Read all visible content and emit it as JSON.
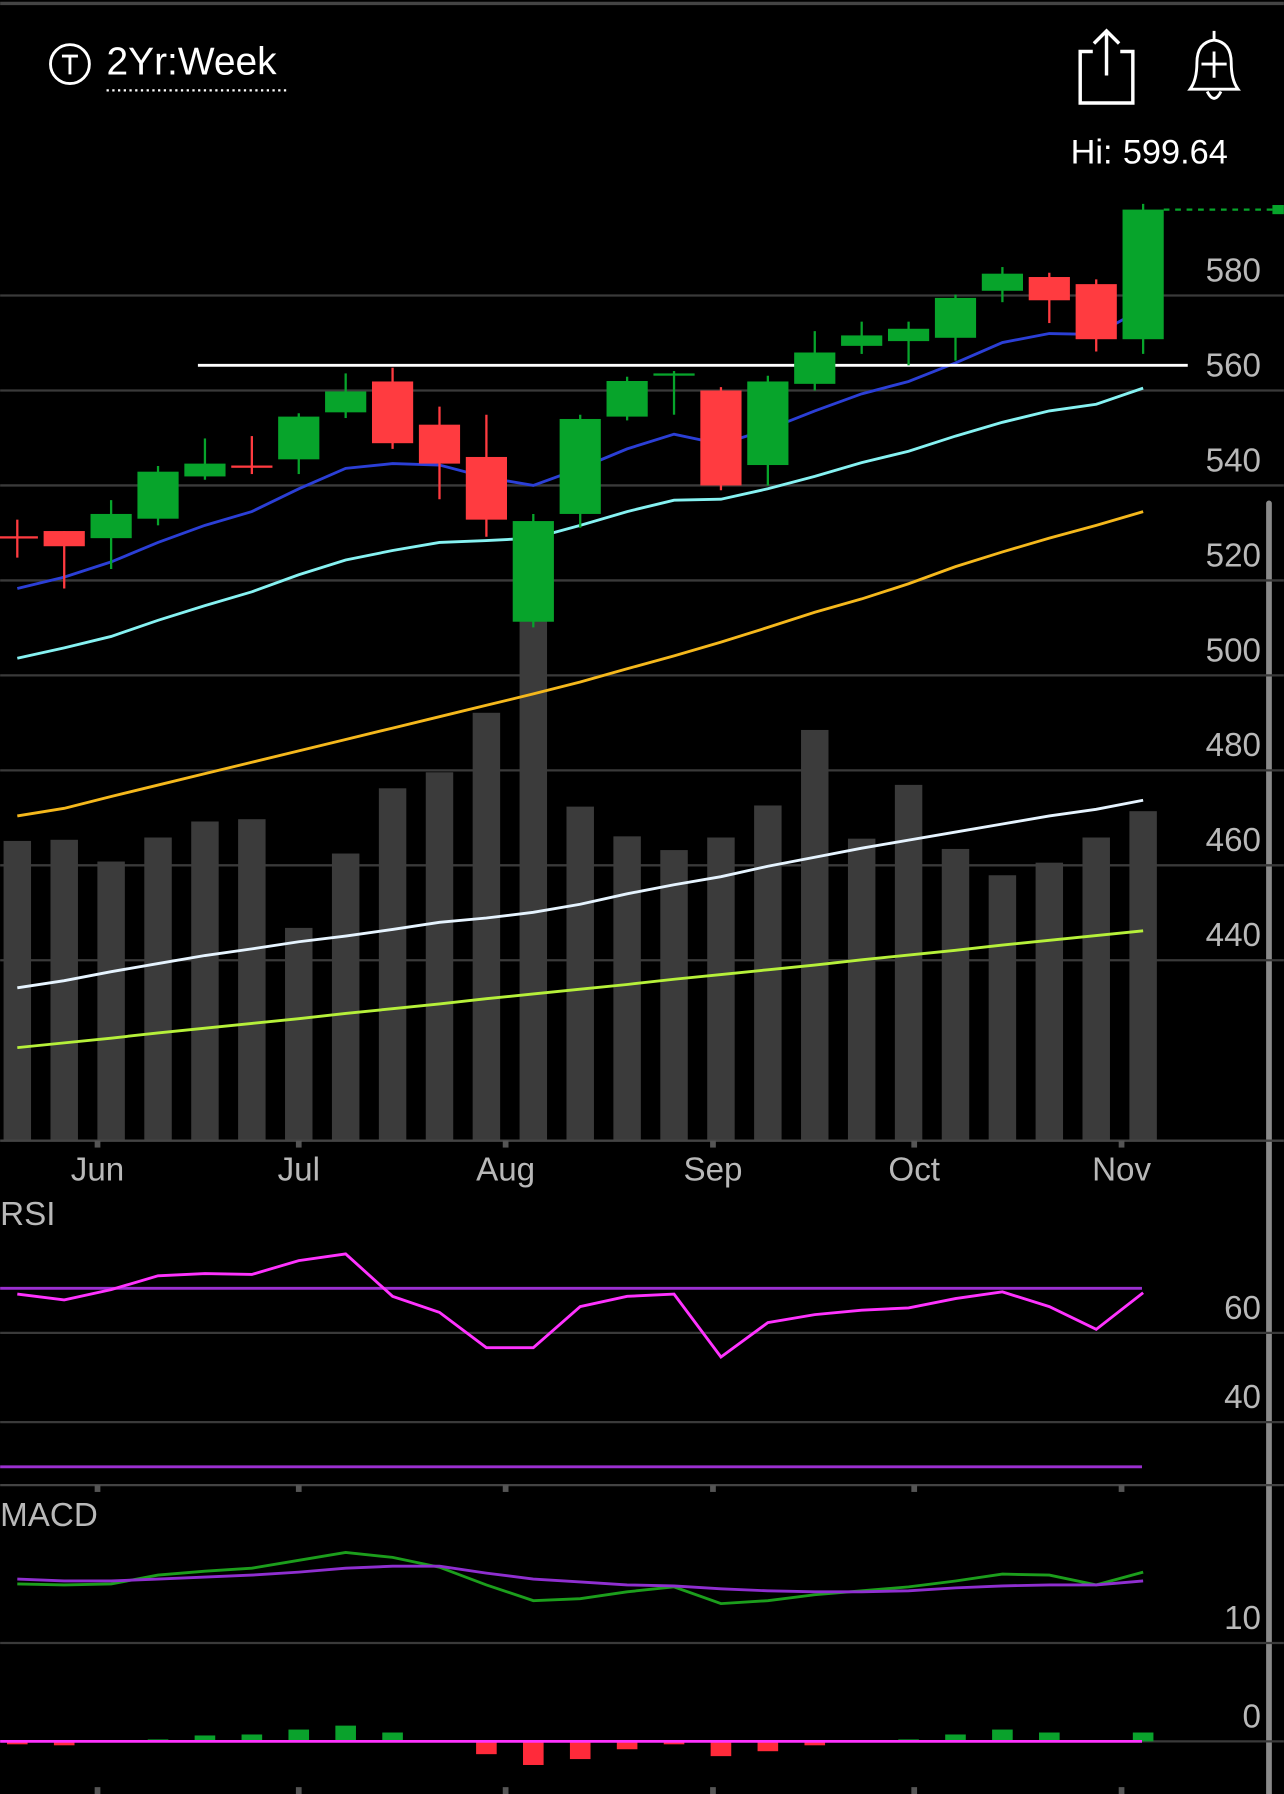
{
  "header": {
    "range": "2Yr:Week",
    "high_label": "Hi:",
    "high": 599.64
  },
  "chart_data": [
    {
      "type": "candlestick",
      "categories": [
        null,
        null,
        null,
        null,
        null,
        null,
        null,
        null,
        null,
        null,
        null,
        null,
        null,
        null,
        null,
        null,
        null,
        null,
        null,
        null,
        null,
        null,
        null,
        null,
        null
      ],
      "open": [
        529.3,
        530.4,
        528.9,
        533.0,
        541.9,
        544.2,
        545.5,
        555.4,
        561.9,
        552.8,
        546.0,
        511.3,
        534.0,
        554.5,
        563.4,
        560.0,
        544.3,
        561.4,
        569.4,
        570.4,
        571.1,
        581.0,
        583.9,
        582.4,
        570.8
      ],
      "high": [
        532.8,
        530.4,
        536.9,
        544.1,
        549.9,
        550.4,
        555.2,
        563.6,
        564.8,
        556.6,
        554.9,
        534.0,
        554.9,
        562.9,
        564.1,
        560.7,
        563.1,
        572.5,
        574.5,
        574.5,
        580.2,
        586.0,
        584.8,
        583.4,
        599.3
      ],
      "low": [
        524.8,
        518.3,
        522.4,
        531.6,
        541.2,
        542.4,
        542.4,
        554.2,
        547.7,
        537.1,
        529.2,
        510.1,
        531.1,
        553.7,
        554.9,
        539.0,
        540.0,
        560.0,
        567.7,
        565.3,
        566.3,
        578.6,
        574.2,
        568.2,
        567.7
      ],
      "close": [
        529.0,
        527.2,
        534.0,
        542.9,
        544.6,
        544.0,
        554.5,
        559.8,
        548.9,
        544.6,
        532.8,
        532.5,
        554.0,
        562.0,
        563.6,
        540.0,
        561.9,
        568.0,
        571.6,
        573.0,
        579.5,
        584.6,
        579.0,
        570.8,
        598.1
      ],
      "up_color": "#07a42b",
      "down_color": "#ff3b40",
      "volume": [
        262,
        263,
        244,
        265,
        279,
        281,
        186,
        251,
        308,
        322,
        374,
        467,
        292,
        266,
        254,
        265,
        293,
        359,
        264,
        311,
        255,
        232,
        243,
        265,
        288
      ],
      "volume_color": "#3b3b3b",
      "series": [
        {
          "color": "#2b3fd6",
          "values": [
            518.3,
            520.7,
            523.9,
            528.0,
            531.6,
            534.5,
            539.3,
            543.6,
            544.6,
            544.3,
            541.7,
            540.0,
            543.6,
            547.7,
            550.8,
            548.7,
            551.8,
            555.7,
            559.3,
            561.9,
            565.8,
            570.1,
            572.0,
            571.8,
            577.3
          ]
        },
        {
          "color": "#86f2f2",
          "values": [
            503.6,
            505.8,
            508.2,
            511.6,
            514.7,
            517.6,
            521.2,
            524.3,
            526.3,
            528.0,
            528.4,
            528.9,
            531.6,
            534.5,
            536.9,
            537.1,
            539.3,
            541.9,
            544.8,
            547.2,
            550.4,
            553.3,
            555.7,
            557.1,
            560.5
          ]
        },
        {
          "color": "#f5b81c",
          "values": [
            470.4,
            472.0,
            474.5,
            476.9,
            479.3,
            481.7,
            484.1,
            486.5,
            488.9,
            491.3,
            493.7,
            496.1,
            498.6,
            501.4,
            504.1,
            507.0,
            510.1,
            513.3,
            516.1,
            519.3,
            522.9,
            526.0,
            528.9,
            531.6,
            534.5
          ]
        },
        {
          "color": "#e6f4ff",
          "values": [
            434.2,
            435.7,
            437.6,
            439.3,
            441.0,
            442.4,
            443.9,
            445.1,
            446.5,
            448.0,
            448.9,
            450.1,
            451.8,
            454.0,
            455.9,
            457.6,
            459.8,
            461.7,
            463.6,
            465.3,
            467.0,
            468.7,
            470.4,
            471.8,
            473.7
          ]
        },
        {
          "color": "#b6f03a",
          "values": [
            421.6,
            422.6,
            423.6,
            424.7,
            425.7,
            426.7,
            427.7,
            428.8,
            429.8,
            430.8,
            431.9,
            432.9,
            433.9,
            434.9,
            436.0,
            437.0,
            438.0,
            439.0,
            440.1,
            441.1,
            442.1,
            443.2,
            444.2,
            445.2,
            446.2
          ]
        }
      ],
      "hlines": [
        {
          "value": 565.3,
          "color": "#ffffff",
          "start": 3.85
        }
      ],
      "ylim": [
        402,
        606
      ],
      "yticks": [
        440,
        460,
        480,
        500,
        520,
        540,
        560,
        580
      ],
      "xticks": [
        {
          "value": 1.71,
          "label": "Jun"
        },
        {
          "value": 6.0,
          "label": "Jul"
        },
        {
          "value": 10.41,
          "label": "Aug"
        },
        {
          "value": 14.83,
          "label": "Sep"
        },
        {
          "value": 19.12,
          "label": "Oct"
        },
        {
          "value": 23.54,
          "label": "Nov"
        }
      ],
      "grid": true
    },
    {
      "type": "line",
      "title": "RSI",
      "series": [
        {
          "color": "#ff33ff",
          "values": [
            68.7,
            67.4,
            69.7,
            72.8,
            73.3,
            73.1,
            76.2,
            77.7,
            68.2,
            64.6,
            56.7,
            56.7,
            65.9,
            68.2,
            68.7,
            54.6,
            62.3,
            64.1,
            65.1,
            65.6,
            67.7,
            69.2,
            65.9,
            60.8,
            69.0
          ]
        }
      ],
      "levels": [
        70,
        30
      ],
      "level_color": "#9b30d0",
      "ylim": [
        26,
        90
      ],
      "yticks": [
        40,
        60
      ],
      "grid": true
    },
    {
      "type": "macd",
      "title": "MACD",
      "series": [
        {
          "color": "#1c9e1c",
          "values": [
            16.0,
            15.9,
            16.0,
            16.9,
            17.3,
            17.6,
            18.4,
            19.2,
            18.7,
            17.7,
            15.9,
            14.3,
            14.5,
            15.2,
            15.7,
            14.0,
            14.3,
            14.9,
            15.3,
            15.7,
            16.3,
            17.0,
            16.9,
            15.9,
            17.2
          ]
        },
        {
          "color": "#8f2fd0",
          "values": [
            16.5,
            16.3,
            16.3,
            16.5,
            16.7,
            16.9,
            17.2,
            17.6,
            17.8,
            17.8,
            17.1,
            16.5,
            16.2,
            15.9,
            15.8,
            15.5,
            15.3,
            15.2,
            15.2,
            15.3,
            15.6,
            15.8,
            15.9,
            15.9,
            16.3
          ]
        }
      ],
      "histogram": [
        -0.3,
        -0.4,
        0,
        0.2,
        0.6,
        0.7,
        1.2,
        1.6,
        0.9,
        0,
        -1.3,
        -2.4,
        -1.8,
        -0.8,
        -0.3,
        -1.5,
        -1.0,
        -0.4,
        0,
        0.2,
        0.7,
        1.2,
        0.9,
        0,
        0.9
      ],
      "hist_up_color": "#0aa22c",
      "hist_down_color": "#ff2a3a",
      "zero_color": "#ff33ff",
      "ylim": [
        -5,
        25
      ],
      "yticks": [
        0,
        10
      ],
      "grid": true
    }
  ]
}
